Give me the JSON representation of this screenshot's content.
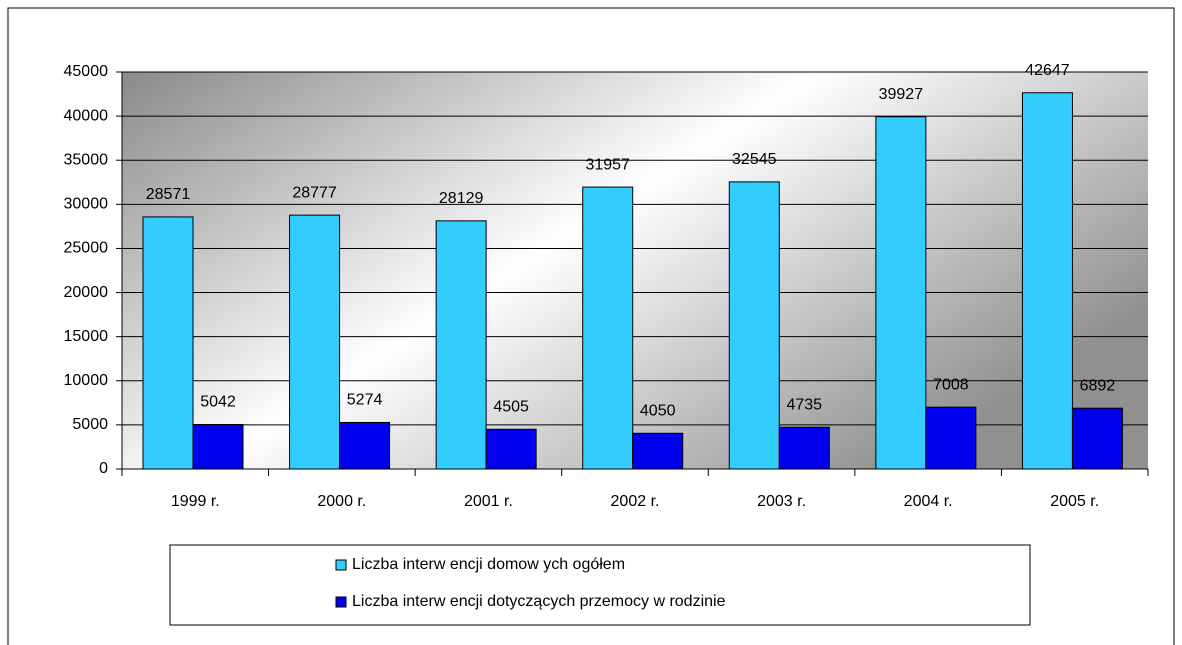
{
  "chart_data": {
    "type": "bar",
    "categories": [
      "1999 r.",
      "2000 r.",
      "2001 r.",
      "2002 r.",
      "2003 r.",
      "2004 r.",
      "2005 r."
    ],
    "series": [
      {
        "name": "Liczba interw encji domow ych ogółem",
        "color": "#33ccff",
        "values": [
          28571,
          28777,
          28129,
          31957,
          32545,
          39927,
          42647
        ]
      },
      {
        "name": "Liczba interw encji dotyczących przemocy w  rodzinie",
        "color": "#0000ee",
        "values": [
          5042,
          5274,
          4505,
          4050,
          4735,
          7008,
          6892
        ]
      }
    ],
    "ylim": [
      0,
      45000
    ],
    "yticks": [
      0,
      5000,
      10000,
      15000,
      20000,
      25000,
      30000,
      35000,
      40000,
      45000
    ],
    "grid": true,
    "legend": "bottom"
  }
}
